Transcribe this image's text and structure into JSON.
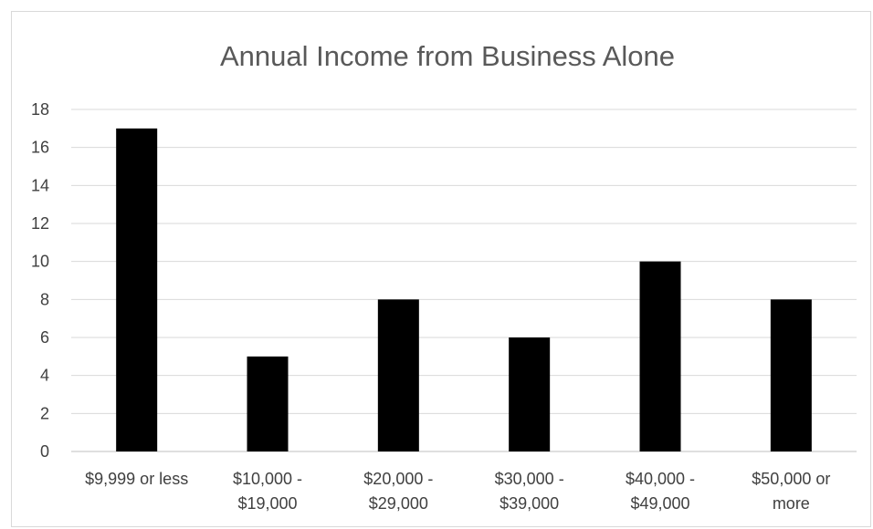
{
  "chart_data": {
    "type": "bar",
    "title": "Annual Income from Business Alone",
    "xlabel": "",
    "ylabel": "",
    "categories": [
      [
        "$9,999 or less"
      ],
      [
        "$10,000 -",
        "$19,000"
      ],
      [
        "$20,000 -",
        "$29,000"
      ],
      [
        "$30,000 -",
        "$39,000"
      ],
      [
        "$40,000 -",
        "$49,000"
      ],
      [
        "$50,000 or",
        "more"
      ]
    ],
    "values": [
      17,
      5,
      8,
      6,
      10,
      8
    ],
    "ylim": [
      0,
      18
    ],
    "yticks": [
      0,
      2,
      4,
      6,
      8,
      10,
      12,
      14,
      16,
      18
    ],
    "grid": true,
    "legend": "none",
    "bar_color": "#000000"
  }
}
